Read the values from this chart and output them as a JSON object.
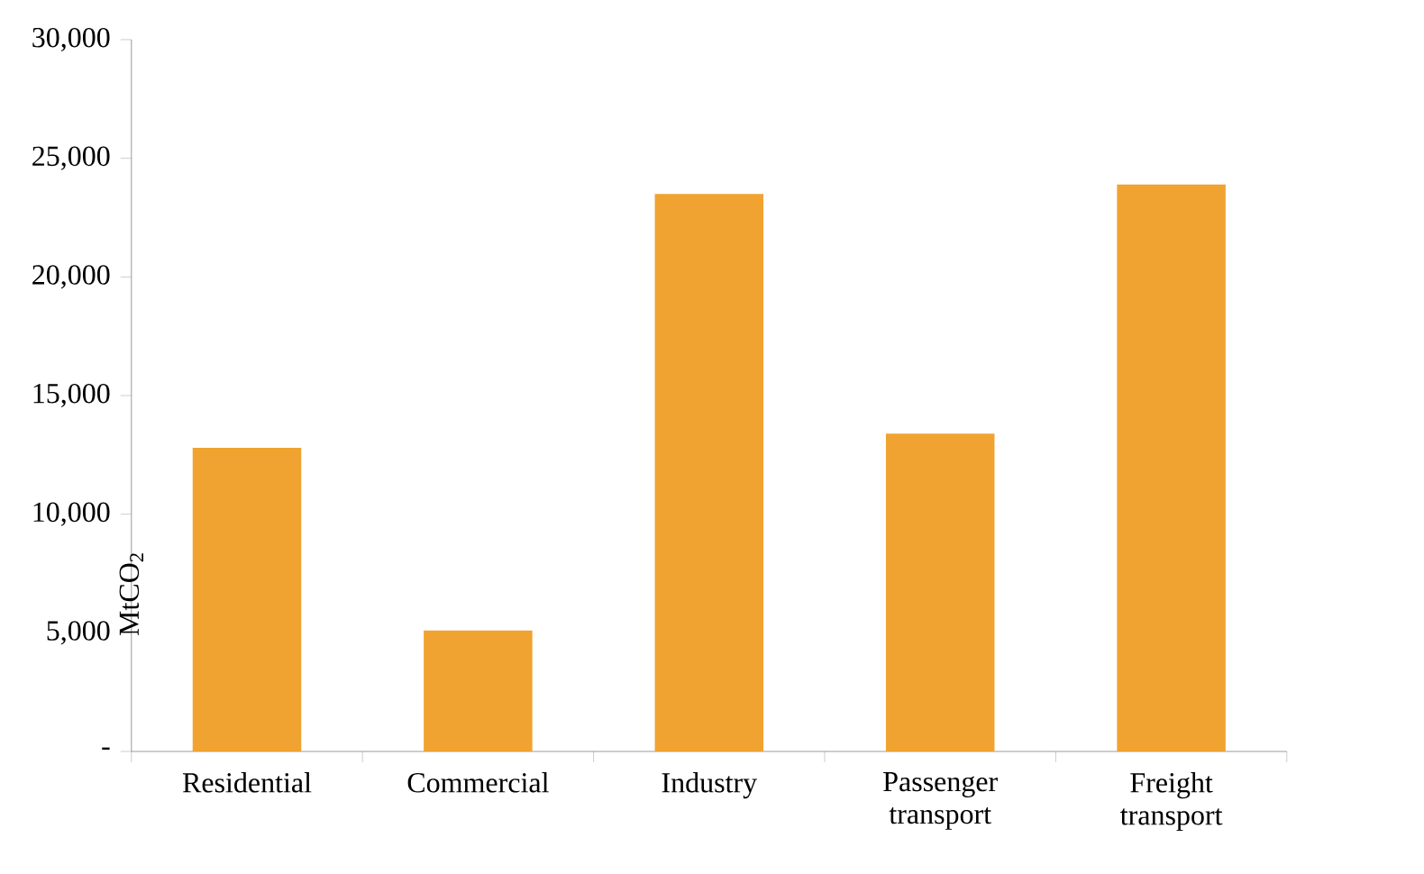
{
  "chart_data": {
    "type": "bar",
    "ylabel": "MtCO$_{2}$",
    "categories": [
      "Residential",
      "Commercial",
      "Industry",
      "Passenger transport",
      "Freight transport"
    ],
    "values": [
      12800,
      5100,
      23500,
      13400,
      23900
    ],
    "color": "#f0a331",
    "ylim": [
      0,
      30000
    ],
    "yticks": [
      {
        "value": 0,
        "label": "-"
      },
      {
        "value": 5000,
        "label": "5,000"
      },
      {
        "value": 10000,
        "label": "10,000"
      },
      {
        "value": 15000,
        "label": "15,000"
      },
      {
        "value": 20000,
        "label": "20,000"
      },
      {
        "value": 25000,
        "label": "25,000"
      },
      {
        "value": 30000,
        "label": "30,000"
      }
    ],
    "grid": false
  }
}
